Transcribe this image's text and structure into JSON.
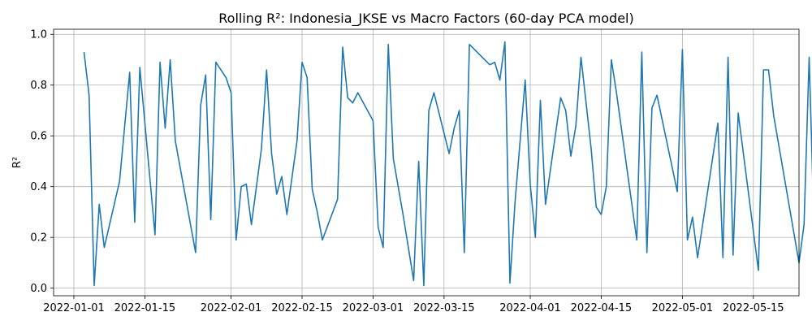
{
  "chart_data": {
    "type": "line",
    "title": "Rolling R²: Indonesia_JKSE vs Macro Factors (60-day PCA model)",
    "xlabel": "",
    "ylabel": "R²",
    "xlim": [
      "2021-12-28",
      "2022-05-24"
    ],
    "ylim": [
      -0.03,
      1.02
    ],
    "grid": true,
    "x_ticks": [
      "2022-01-01",
      "2022-01-15",
      "2022-02-01",
      "2022-02-15",
      "2022-03-01",
      "2022-03-15",
      "2022-04-01",
      "2022-04-15",
      "2022-05-01",
      "2022-05-15"
    ],
    "y_ticks": [
      "0.0",
      "0.2",
      "0.4",
      "0.6",
      "0.8",
      "1.0"
    ],
    "series": [
      {
        "color": "#1f77b4",
        "points": [
          [
            "2022-01-03",
            0.93
          ],
          [
            "2022-01-04",
            0.76
          ],
          [
            "2022-01-05",
            0.01
          ],
          [
            "2022-01-06",
            0.33
          ],
          [
            "2022-01-07",
            0.16
          ],
          [
            "2022-01-10",
            0.42
          ],
          [
            "2022-01-12",
            0.85
          ],
          [
            "2022-01-13",
            0.26
          ],
          [
            "2022-01-14",
            0.87
          ],
          [
            "2022-01-17",
            0.21
          ],
          [
            "2022-01-18",
            0.89
          ],
          [
            "2022-01-19",
            0.63
          ],
          [
            "2022-01-20",
            0.9
          ],
          [
            "2022-01-21",
            0.58
          ],
          [
            "2022-01-25",
            0.14
          ],
          [
            "2022-01-26",
            0.72
          ],
          [
            "2022-01-27",
            0.84
          ],
          [
            "2022-01-28",
            0.27
          ],
          [
            "2022-01-29",
            0.89
          ],
          [
            "2022-01-31",
            0.83
          ],
          [
            "2022-02-01",
            0.77
          ],
          [
            "2022-02-02",
            0.19
          ],
          [
            "2022-02-03",
            0.4
          ],
          [
            "2022-02-04",
            0.41
          ],
          [
            "2022-02-05",
            0.25
          ],
          [
            "2022-02-07",
            0.55
          ],
          [
            "2022-02-08",
            0.86
          ],
          [
            "2022-02-09",
            0.53
          ],
          [
            "2022-02-10",
            0.37
          ],
          [
            "2022-02-11",
            0.44
          ],
          [
            "2022-02-12",
            0.29
          ],
          [
            "2022-02-14",
            0.58
          ],
          [
            "2022-02-15",
            0.89
          ],
          [
            "2022-02-16",
            0.83
          ],
          [
            "2022-02-17",
            0.39
          ],
          [
            "2022-02-18",
            0.3
          ],
          [
            "2022-02-19",
            0.19
          ],
          [
            "2022-02-22",
            0.35
          ],
          [
            "2022-02-23",
            0.95
          ],
          [
            "2022-02-24",
            0.75
          ],
          [
            "2022-02-25",
            0.73
          ],
          [
            "2022-02-26",
            0.77
          ],
          [
            "2022-03-01",
            0.66
          ],
          [
            "2022-03-02",
            0.24
          ],
          [
            "2022-03-03",
            0.16
          ],
          [
            "2022-03-04",
            0.96
          ],
          [
            "2022-03-05",
            0.51
          ],
          [
            "2022-03-07",
            0.28
          ],
          [
            "2022-03-09",
            0.03
          ],
          [
            "2022-03-10",
            0.5
          ],
          [
            "2022-03-11",
            0.01
          ],
          [
            "2022-03-12",
            0.7
          ],
          [
            "2022-03-13",
            0.77
          ],
          [
            "2022-03-16",
            0.53
          ],
          [
            "2022-03-17",
            0.63
          ],
          [
            "2022-03-18",
            0.7
          ],
          [
            "2022-03-19",
            0.14
          ],
          [
            "2022-03-20",
            0.96
          ],
          [
            "2022-03-24",
            0.88
          ],
          [
            "2022-03-25",
            0.89
          ],
          [
            "2022-03-26",
            0.82
          ],
          [
            "2022-03-27",
            0.97
          ],
          [
            "2022-03-28",
            0.02
          ],
          [
            "2022-03-29",
            0.34
          ],
          [
            "2022-03-31",
            0.82
          ],
          [
            "2022-04-01",
            0.41
          ],
          [
            "2022-04-02",
            0.2
          ],
          [
            "2022-04-03",
            0.74
          ],
          [
            "2022-04-04",
            0.33
          ],
          [
            "2022-04-07",
            0.75
          ],
          [
            "2022-04-08",
            0.7
          ],
          [
            "2022-04-09",
            0.52
          ],
          [
            "2022-04-10",
            0.64
          ],
          [
            "2022-04-11",
            0.91
          ],
          [
            "2022-04-13",
            0.55
          ],
          [
            "2022-04-14",
            0.32
          ],
          [
            "2022-04-15",
            0.29
          ],
          [
            "2022-04-16",
            0.4
          ],
          [
            "2022-04-17",
            0.9
          ],
          [
            "2022-04-18",
            0.77
          ],
          [
            "2022-04-22",
            0.19
          ],
          [
            "2022-04-23",
            0.93
          ],
          [
            "2022-04-24",
            0.14
          ],
          [
            "2022-04-25",
            0.71
          ],
          [
            "2022-04-26",
            0.76
          ],
          [
            "2022-04-30",
            0.38
          ],
          [
            "2022-05-01",
            0.94
          ],
          [
            "2022-05-02",
            0.19
          ],
          [
            "2022-05-03",
            0.28
          ],
          [
            "2022-05-04",
            0.12
          ],
          [
            "2022-05-05",
            0.25
          ],
          [
            "2022-05-08",
            0.65
          ],
          [
            "2022-05-09",
            0.12
          ],
          [
            "2022-05-10",
            0.91
          ],
          [
            "2022-05-11",
            0.13
          ],
          [
            "2022-05-12",
            0.69
          ],
          [
            "2022-05-16",
            0.07
          ],
          [
            "2022-05-17",
            0.86
          ],
          [
            "2022-05-18",
            0.86
          ],
          [
            "2022-05-19",
            0.68
          ],
          [
            "2022-05-24",
            0.1
          ],
          [
            "2022-05-25",
            0.25
          ],
          [
            "2022-05-26",
            0.91
          ],
          [
            "2022-05-27",
            0.22
          ],
          [
            "2022-05-28",
            0.48
          ]
        ]
      }
    ]
  }
}
